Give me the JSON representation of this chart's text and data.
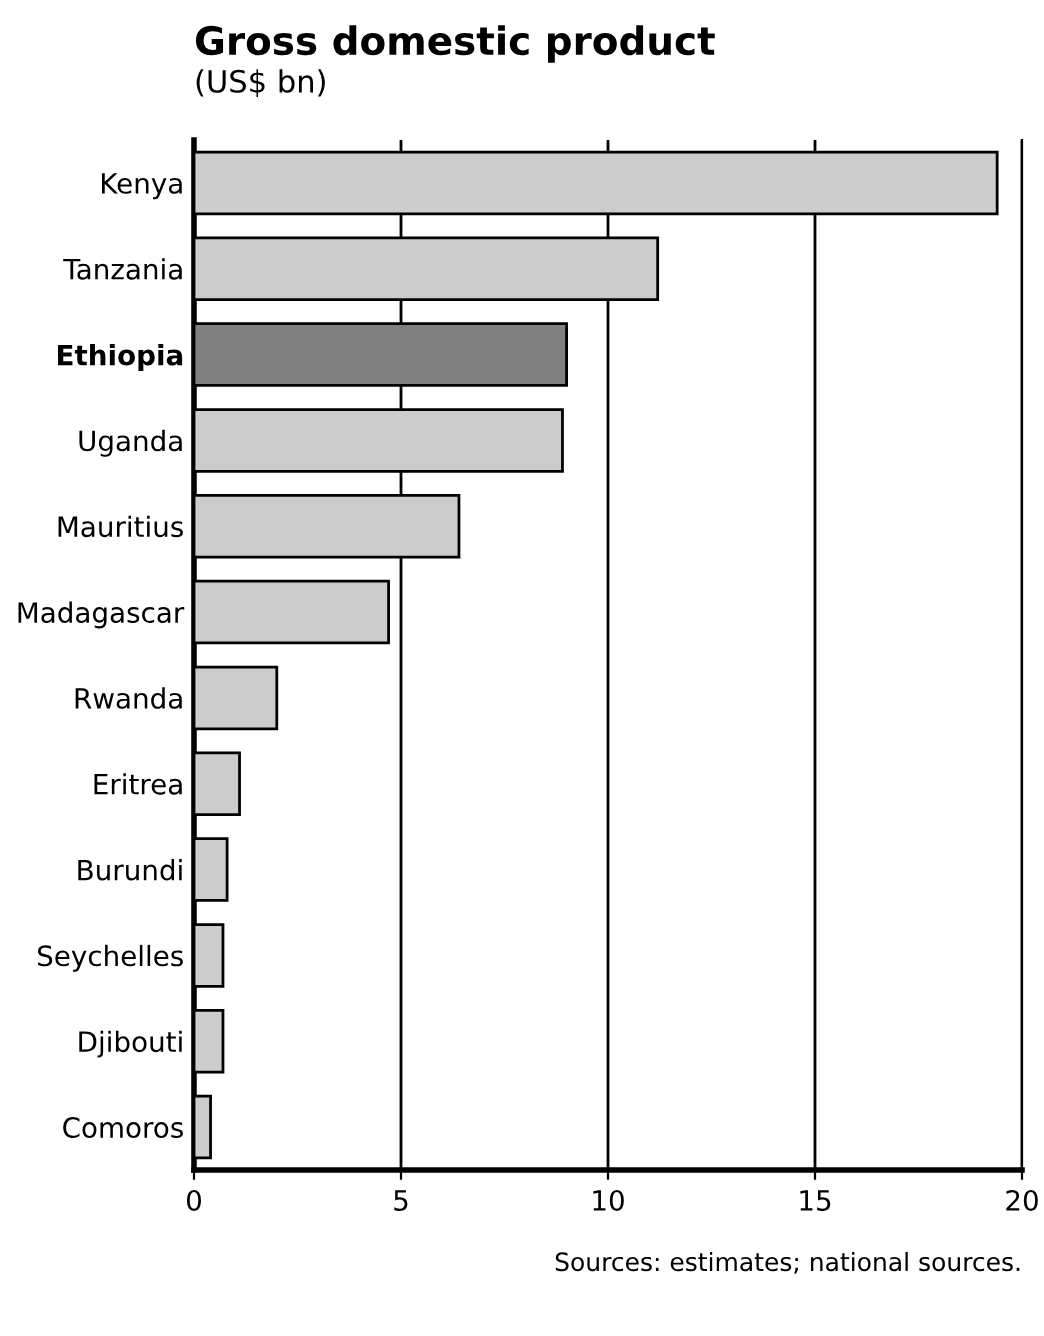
{
  "chart_data": {
    "type": "bar",
    "orientation": "horizontal",
    "title": "Gross domestic product",
    "subtitle": "(US$ bn)",
    "categories": [
      "Kenya",
      "Tanzania",
      "Ethiopia",
      "Uganda",
      "Mauritius",
      "Madagascar",
      "Rwanda",
      "Eritrea",
      "Burundi",
      "Seychelles",
      "Djibouti",
      "Comoros"
    ],
    "values": [
      19.4,
      11.2,
      9.0,
      8.9,
      6.4,
      4.7,
      2.0,
      1.1,
      0.8,
      0.7,
      0.7,
      0.4
    ],
    "colors": [
      "#cccccc",
      "#cccccc",
      "#808080",
      "#cccccc",
      "#cccccc",
      "#cccccc",
      "#cccccc",
      "#cccccc",
      "#cccccc",
      "#cccccc",
      "#cccccc",
      "#cccccc"
    ],
    "xlim": [
      0,
      20
    ],
    "xticks": [
      0,
      5,
      10,
      15,
      20
    ],
    "grid": "x",
    "annotations": [
      "Sources: estimates; national sources."
    ]
  }
}
